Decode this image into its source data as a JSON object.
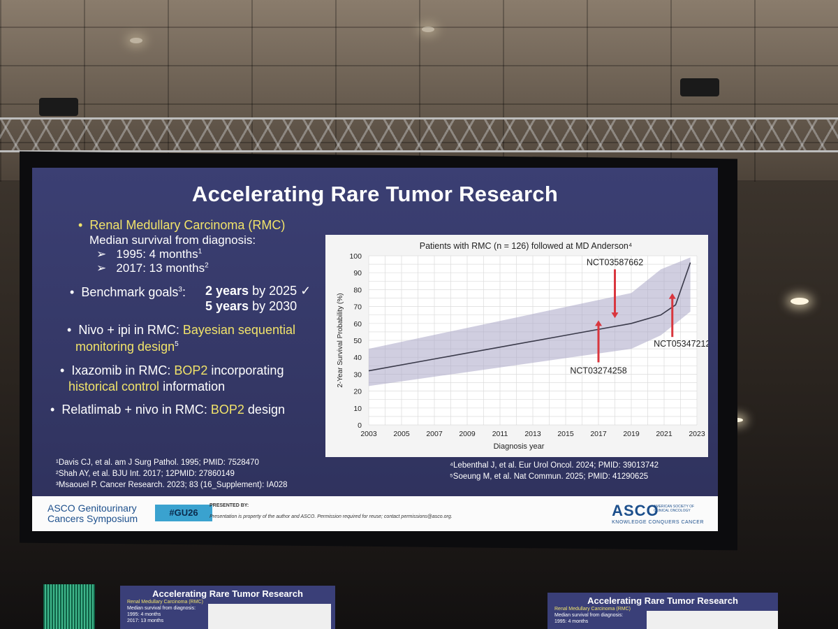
{
  "slide": {
    "title": "Accelerating Rare Tumor Research",
    "bullets": {
      "rmc": "Renal Medullary Carcinoma (RMC)",
      "median": "Median survival from diagnosis:",
      "sub1": "1995: 4 months",
      "sub1_sup": "1",
      "sub2": "2017: 13 months",
      "sub2_sup": "2",
      "bench_label": "Benchmark goals",
      "bench_sup": "3",
      "bench_colon": ":",
      "goal1_bold": "2 years",
      "goal1_rest": " by 2025 ✓",
      "goal2_bold": "5 years",
      "goal2_rest": " by 2030",
      "nivo_white": "Nivo + ipi in RMC: ",
      "nivo_yellow1": "Bayesian sequential",
      "nivo_yellow2": "monitoring design",
      "nivo_sup": "5",
      "ixa_white": "Ixazomib in RMC: ",
      "ixa_yellow": "BOP2",
      "ixa_white2": " incorporating",
      "ixa_yellow2": "historical control",
      "ixa_white3": " information",
      "rela_white": "Relatlimab + nivo in RMC: ",
      "rela_yellow": "BOP2",
      "rela_white2": " design"
    },
    "footnotes_left": [
      "¹Davis CJ, et al. am J Surg Pathol. 1995; PMID: 7528470",
      "²Shah AY, et al. BJU Int. 2017; 12PMID: 27860149",
      "³Msaouel P. Cancer Research. 2023; 83 (16_Supplement): IA028"
    ],
    "footnotes_right": [
      "⁴Lebenthal J, et al. Eur Urol Oncol. 2024; PMID: 39013742",
      "⁵Soeung M, et al. Nat Commun. 2025; PMID: 41290625"
    ],
    "footer": {
      "asco_gu_line1": "ASCO Genitourinary",
      "asco_gu_line2": "Cancers Symposium",
      "hashtag": "#GU26",
      "presented_by": "PRESENTED BY:",
      "property_note": "Presentation is property of the author and ASCO. Permission required for reuse; contact permissions@asco.org.",
      "asco": "ASCO",
      "asco_org": "AMERICAN SOCIETY OF CLINICAL ONCOLOGY",
      "asco_tagline": "KNOWLEDGE CONQUERS CANCER"
    }
  },
  "chart_data": {
    "type": "line",
    "title": "Patients with RMC (n = 126) followed at MD Anderson⁴",
    "xlabel": "Diagnosis year",
    "ylabel": "2-Year Survival Probability (%)",
    "xlim": [
      2003,
      2023
    ],
    "ylim": [
      0,
      100
    ],
    "x_ticks": [
      2003,
      2005,
      2007,
      2009,
      2011,
      2013,
      2015,
      2017,
      2019,
      2021,
      2023
    ],
    "y_ticks": [
      0,
      10,
      20,
      30,
      40,
      50,
      60,
      70,
      80,
      90,
      100
    ],
    "series": [
      {
        "x": [
          2003,
          2007,
          2011,
          2015,
          2019,
          2020.8,
          2021.7,
          2022.6
        ],
        "y": [
          32,
          39,
          46,
          53,
          60,
          65,
          71,
          96
        ]
      }
    ],
    "band_upper": {
      "x": [
        2003,
        2019,
        2020.8,
        2022.6
      ],
      "y": [
        45,
        78,
        92,
        99
      ]
    },
    "band_lower": {
      "x": [
        2003,
        2019,
        2020.8,
        2022.6
      ],
      "y": [
        23,
        45,
        53,
        67
      ]
    },
    "annotations": [
      {
        "label": "NCT03587662",
        "x": 2018,
        "y_from": 92,
        "y_to": 64,
        "color": "#d9363e"
      },
      {
        "label": "NCT03274258",
        "x": 2017,
        "y_from": 37,
        "y_to": 61,
        "color": "#d9363e"
      },
      {
        "label": "NCT05347212",
        "x": 2021.5,
        "y_from": 52,
        "y_to": 77,
        "color": "#d9363e"
      }
    ],
    "band_color": "#a9a6c6",
    "line_color": "#3a3a4a",
    "grid": true
  }
}
